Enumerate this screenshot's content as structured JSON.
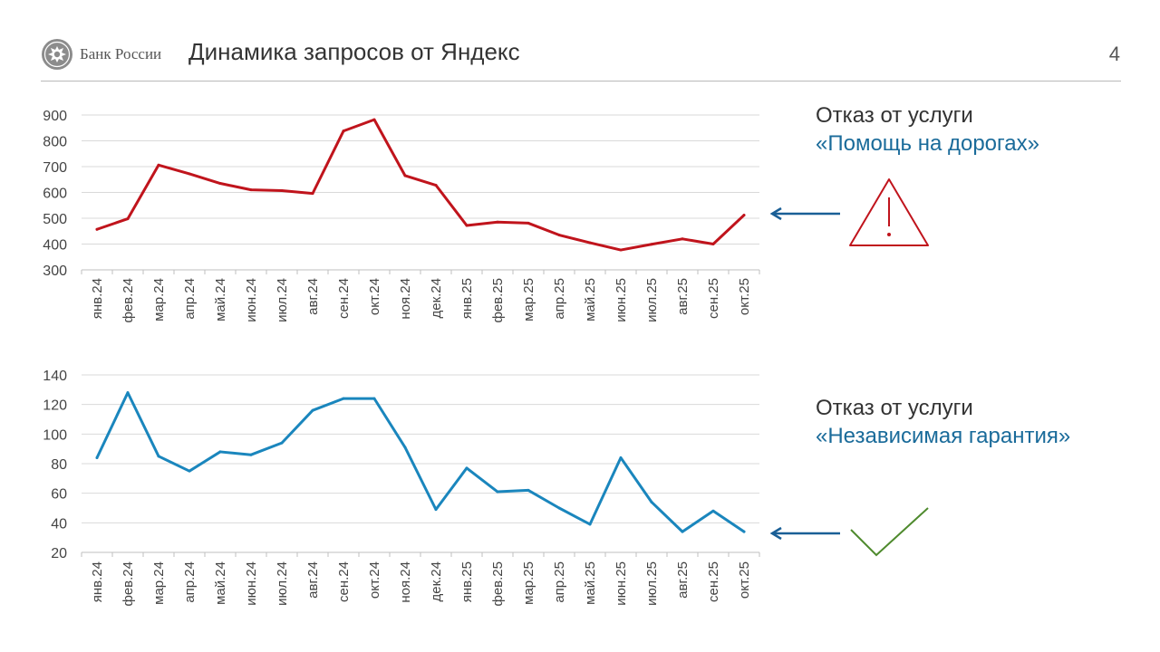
{
  "header": {
    "brand": "Банк России",
    "title": "Динамика запросов от Яндекс",
    "page_number": "4"
  },
  "captions": [
    {
      "line1": "Отказ от услуги",
      "line2": "«Помощь на дорогах»"
    },
    {
      "line1": "Отказ от услуги",
      "line2": "«Независимая гарантия»"
    }
  ],
  "colors": {
    "series_red": "#c0141c",
    "series_blue": "#1a86bd",
    "arrow": "#1a5f96",
    "warning": "#c0141c",
    "check": "#4e8a2d"
  },
  "icons": [
    "bank-logo-icon",
    "warning-triangle-icon",
    "checkmark-icon",
    "arrow-left-icon"
  ],
  "chart_data": [
    {
      "type": "line",
      "categories": [
        "янв.24",
        "фев.24",
        "мар.24",
        "апр.24",
        "май.24",
        "июн.24",
        "июл.24",
        "авг.24",
        "сен.24",
        "окт.24",
        "ноя.24",
        "дек.24",
        "янв.25",
        "фев.25",
        "мар.25",
        "апр.25",
        "май.25",
        "июн.25",
        "июл.25",
        "авг.25",
        "сен.25",
        "окт.25"
      ],
      "series": [
        {
          "values": [
            457,
            498,
            706,
            672,
            635,
            610,
            607,
            596,
            838,
            882,
            665,
            628,
            472,
            485,
            481,
            435,
            405,
            377,
            399,
            420,
            400,
            512
          ]
        }
      ],
      "ylim": [
        300,
        900
      ],
      "yticks": [
        300,
        400,
        500,
        600,
        700,
        800,
        900
      ],
      "grid": true
    },
    {
      "type": "line",
      "categories": [
        "янв.24",
        "фев.24",
        "мар.24",
        "апр.24",
        "май.24",
        "июн.24",
        "июл.24",
        "авг.24",
        "сен.24",
        "окт.24",
        "ноя.24",
        "дек.24",
        "янв.25",
        "фев.25",
        "мар.25",
        "апр.25",
        "май.25",
        "июн.25",
        "июл.25",
        "авг.25",
        "сен.25",
        "окт.25"
      ],
      "series": [
        {
          "values": [
            84,
            128,
            85,
            75,
            88,
            86,
            94,
            116,
            124,
            124,
            91,
            49,
            77,
            61,
            62,
            50,
            39,
            84,
            54,
            34,
            48,
            34
          ]
        }
      ],
      "ylim": [
        20,
        140
      ],
      "yticks": [
        20,
        40,
        60,
        80,
        100,
        120,
        140
      ],
      "grid": true
    }
  ]
}
